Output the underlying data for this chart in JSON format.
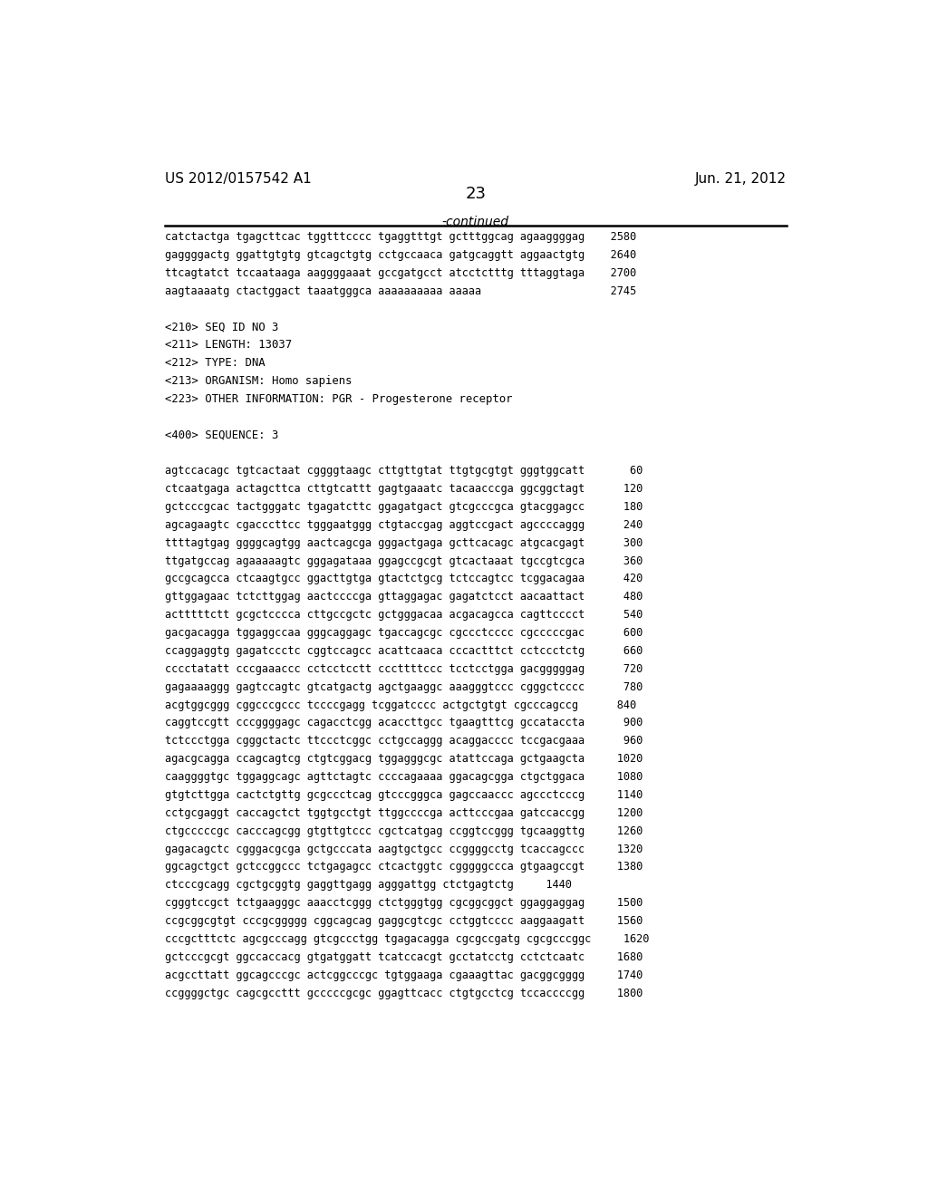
{
  "background_color": "#ffffff",
  "header_left": "US 2012/0157542 A1",
  "header_right": "Jun. 21, 2012",
  "page_number": "23",
  "continued_label": "-continued",
  "sequence_lines": [
    "catctactga tgagcttcac tggtttcccc tgaggtttgt gctttggcag agaaggggag    2580",
    "gaggggactg ggattgtgtg gtcagctgtg cctgccaaca gatgcaggtt aggaactgtg    2640",
    "ttcagtatct tccaataaga aaggggaaat gccgatgcct atcctctttg tttaggtaga    2700",
    "aagtaaaatg ctactggact taaatgggca aaaaaaaaaa aaaaa                    2745",
    "",
    "<210> SEQ ID NO 3",
    "<211> LENGTH: 13037",
    "<212> TYPE: DNA",
    "<213> ORGANISM: Homo sapiens",
    "<223> OTHER INFORMATION: PGR - Progesterone receptor",
    "",
    "<400> SEQUENCE: 3",
    "",
    "agtccacagc tgtcactaat cggggtaagc cttgttgtat ttgtgcgtgt gggtggcatt       60",
    "ctcaatgaga actagcttca cttgtcattt gagtgaaatc tacaacccga ggcggctagt      120",
    "gctcccgcac tactgggatc tgagatcttc ggagatgact gtcgcccgca gtacggagcc      180",
    "agcagaagtc cgacccttcc tgggaatggg ctgtaccgag aggtccgact agccccaggg      240",
    "ttttagtgag ggggcagtgg aactcagcga gggactgaga gcttcacagc atgcacgagt      300",
    "ttgatgccag agaaaaagtc gggagataaa ggagccgcgt gtcactaaat tgccgtcgca      360",
    "gccgcagcca ctcaagtgcc ggacttgtga gtactctgcg tctccagtcc tcggacagaa      420",
    "gttggagaac tctcttggag aactccccga gttaggagac gagatctcct aacaattact      480",
    "actttttctt gcgctcccca cttgccgctc gctgggacaa acgacagcca cagttcccct      540",
    "gacgacagga tggaggccaa gggcaggagc tgaccagcgc cgccctcccc cgcccccgac      600",
    "ccaggaggtg gagatccctc cggtccagcc acattcaaca cccactttct cctccctctg      660",
    "cccctatatt cccgaaaccc cctcctcctt cccttttccc tcctcctgga gacgggggag      720",
    "gagaaaaggg gagtccagtc gtcatgactg agctgaaggc aaagggtccc cgggctcccc      780",
    "acgtggcggg cggcccgccc tccccgagg tcggatcccc actgctgtgt cgcccagccg      840",
    "caggtccgtt cccggggagc cagacctcgg acaccttgcc tgaagtttcg gccataccta      900",
    "tctccctgga cgggctactc ttccctcggc cctgccaggg acaggacccc tccgacgaaa      960",
    "agacgcagga ccagcagtcg ctgtcggacg tggagggcgc atattccaga gctgaagcta     1020",
    "caaggggtgc tggaggcagc agttctagtc ccccagaaaa ggacagcgga ctgctggaca     1080",
    "gtgtcttgga cactctgttg gcgccctcag gtcccgggca gagccaaccc agccctcccg     1140",
    "cctgcgaggt caccagctct tggtgcctgt ttggccccga acttcccgaa gatccaccgg     1200",
    "ctgcccccgc cacccagcgg gtgttgtccc cgctcatgag ccggtccggg tgcaaggttg     1260",
    "gagacagctc cgggacgcga gctgcccata aagtgctgcc ccggggcctg tcaccagccc     1320",
    "ggcagctgct gctccggccc tctgagagcc ctcactggtc cgggggccca gtgaagccgt     1380",
    "ctcccgcagg cgctgcggtg gaggttgagg agggattgg ctctgagtctg     1440",
    "cgggtccgct tctgaagggc aaacctcggg ctctgggtgg cgcggcggct ggaggaggag     1500",
    "ccgcggcgtgt cccgcggggg cggcagcag gaggcgtcgc cctggtcccc aaggaagatt     1560",
    "cccgctttctc agcgcccagg gtcgccctgg tgagacagga cgcgccgatg cgcgcccggc     1620",
    "gctcccgcgt ggccaccacg gtgatggatt tcatccacgt gcctatcctg cctctcaatc     1680",
    "acgccttatt ggcagcccgc actcggcccgc tgtggaaga cgaaagttac gacggcgggg     1740",
    "ccggggctgc cagcgccttt gcccccgcgc ggagttcacc ctgtgcctcg tccaccccgg     1800"
  ],
  "meta_tags": [
    "<210>",
    "<211>",
    "<212>",
    "<213>",
    "<223>",
    "<400>"
  ]
}
